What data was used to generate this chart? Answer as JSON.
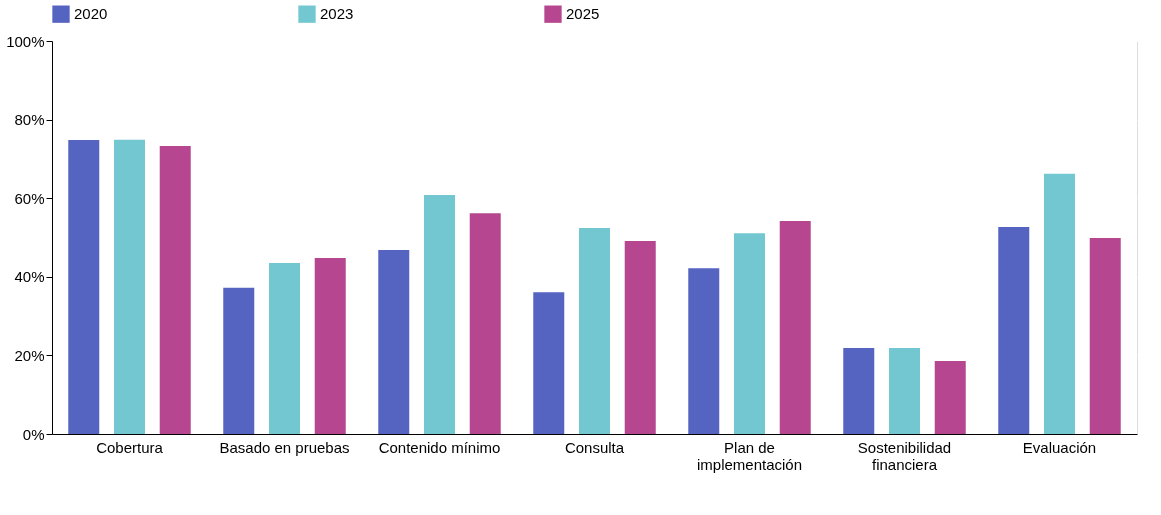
{
  "chart_data": {
    "type": "bar",
    "categories": [
      "Cobertura",
      "Basado en pruebas",
      "Contenido mínimo",
      "Consulta",
      "Plan de implementación",
      "Sostenibilidad financiera",
      "Evaluación"
    ],
    "series": [
      {
        "name": "2020",
        "color": "#5563c1",
        "values": [
          74.8,
          37.2,
          46.8,
          36.1,
          42.2,
          21.9,
          52.7
        ]
      },
      {
        "name": "2023",
        "color": "#72c7d1",
        "values": [
          74.9,
          43.5,
          60.8,
          52.4,
          51.1,
          21.9,
          66.2
        ]
      },
      {
        "name": "2025",
        "color": "#b5468f",
        "values": [
          73.3,
          44.8,
          56.2,
          49.1,
          54.2,
          18.6,
          49.9
        ]
      }
    ],
    "ylim": [
      0,
      100
    ],
    "yticks": [
      {
        "value": 0,
        "label": "0%"
      },
      {
        "value": 20,
        "label": "20%"
      },
      {
        "value": 40,
        "label": "40%"
      },
      {
        "value": 60,
        "label": "60%"
      },
      {
        "value": 80,
        "label": "80%"
      },
      {
        "value": 100,
        "label": "100%"
      }
    ],
    "grid": "y",
    "legend": "top"
  }
}
